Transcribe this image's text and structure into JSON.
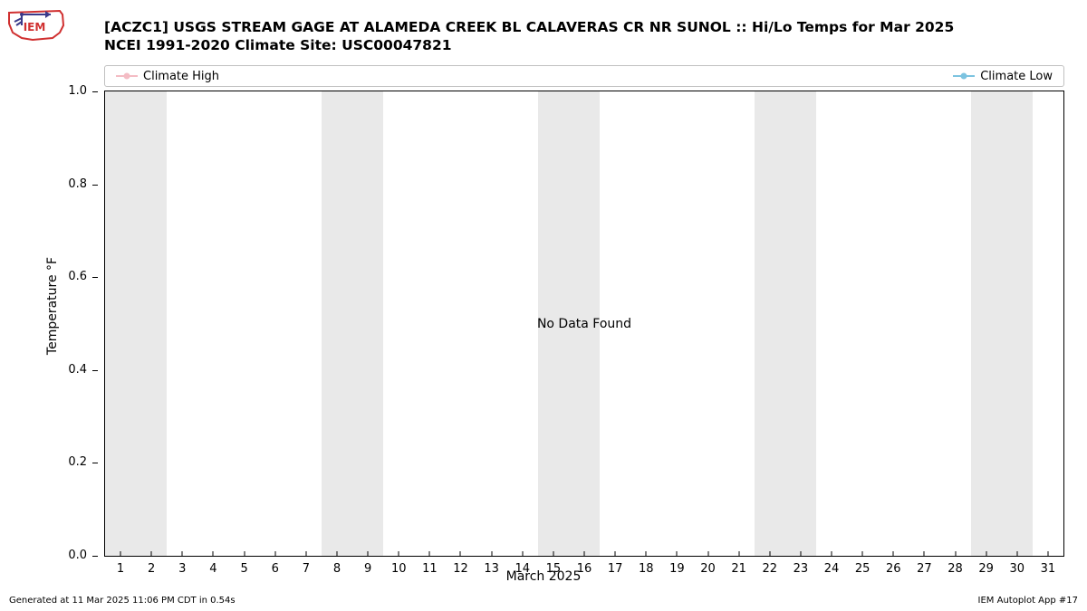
{
  "title": {
    "line1": "[ACZC1] USGS STREAM GAGE  AT ALAMEDA CREEK BL CALAVERAS CR NR SUNOL :: Hi/Lo Temps for Mar 2025",
    "line2": "NCEI 1991-2020 Climate Site: USC00047821",
    "fontsize": 15.5,
    "fontweight": "bold",
    "color": "#000000"
  },
  "legend": {
    "border_color": "#c0c0c0",
    "background": "#ffffff",
    "fontsize": 13,
    "items": [
      {
        "label": "Climate High",
        "color": "#f4bcc4",
        "marker": "circle"
      },
      {
        "label": "Climate Low",
        "color": "#7cc3e0",
        "marker": "circle"
      }
    ]
  },
  "chart": {
    "type": "line",
    "ylabel": "Temperature °F",
    "xlabel": "March 2025",
    "ylim": [
      0.0,
      1.0
    ],
    "ytick_step": 0.2,
    "yticks": [
      "0.0",
      "0.2",
      "0.4",
      "0.6",
      "0.8",
      "1.0"
    ],
    "xlim": [
      0.5,
      31.5
    ],
    "xticks": [
      1,
      2,
      3,
      4,
      5,
      6,
      7,
      8,
      9,
      10,
      11,
      12,
      13,
      14,
      15,
      16,
      17,
      18,
      19,
      20,
      21,
      22,
      23,
      24,
      25,
      26,
      27,
      28,
      29,
      30,
      31
    ],
    "weekend_bands": [
      {
        "start": 0.5,
        "end": 2.5
      },
      {
        "start": 7.5,
        "end": 9.5
      },
      {
        "start": 14.5,
        "end": 16.5
      },
      {
        "start": 21.5,
        "end": 23.5
      },
      {
        "start": 28.5,
        "end": 30.5
      }
    ],
    "weekend_color": "#e9e9e9",
    "background_color": "#ffffff",
    "border_color": "#000000",
    "tick_fontsize": 13,
    "label_fontsize": 14,
    "no_data_text": "No Data Found",
    "series": []
  },
  "footer": {
    "left": "Generated at 11 Mar 2025 11:06 PM CDT in 0.54s",
    "right": "IEM Autoplot App #17",
    "fontsize": 10
  },
  "logo": {
    "outline_color": "#d03030",
    "arrow_fill": "#3a3a8a"
  }
}
